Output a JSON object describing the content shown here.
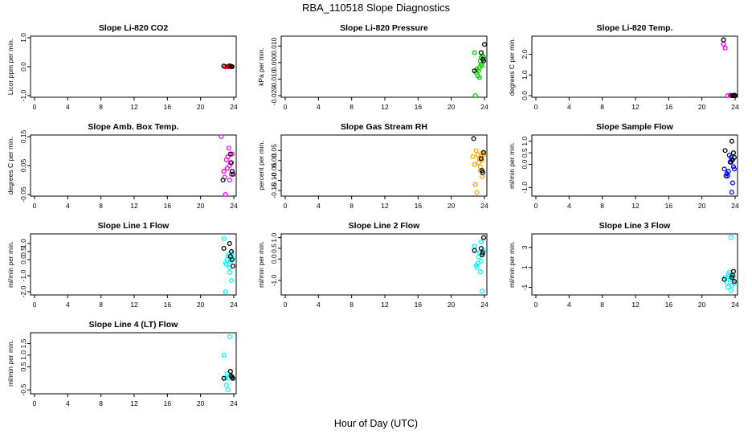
{
  "figure": {
    "title": "RBA_110518  Slope Diagnostics",
    "xlabel": "Hour of Day (UTC)",
    "black_color": "#000000"
  },
  "chart_data": [
    {
      "type": "scatter",
      "title": "Slope Li-820 CO2",
      "ylabel": "Licor ppm per min.",
      "xlim": [
        0,
        24
      ],
      "ylim": [
        -1.0,
        1.0
      ],
      "xticks": [
        "0",
        "4",
        "8",
        "12",
        "16",
        "20",
        "24"
      ],
      "yticks": [
        "-1.0",
        "0.0",
        "1.0"
      ],
      "color": "#ff0000",
      "series": [
        {
          "x": [
            22.8,
            23.0,
            23.2,
            23.3,
            23.4,
            23.5,
            23.6,
            23.7
          ],
          "y": [
            0.02,
            0.0,
            0.01,
            0.0,
            0.02,
            0.0,
            0.01,
            0.0
          ]
        },
        {
          "x": [
            22.8,
            23.5,
            23.7,
            23.8
          ],
          "y": [
            0.02,
            0.03,
            0.01,
            0.0
          ]
        }
      ]
    },
    {
      "type": "scatter",
      "title": "Slope Li-820 Pressure",
      "ylabel": "kPa per min.",
      "xlim": [
        0,
        24
      ],
      "ylim": [
        -0.02,
        0.015
      ],
      "xticks": [
        "0",
        "4",
        "8",
        "12",
        "16",
        "20",
        "24"
      ],
      "yticks": [
        "-0.020",
        "-0.010",
        "0.000",
        "0.010"
      ],
      "color": "#00cc00",
      "series": [
        {
          "x": [
            22.8,
            23.0,
            23.2,
            23.3,
            23.4,
            23.5,
            23.6,
            23.7,
            23.8,
            23.9,
            22.9,
            23.1,
            23.4,
            23.6,
            23.8
          ],
          "y": [
            0.006,
            -0.006,
            -0.008,
            -0.005,
            -0.003,
            0.001,
            0.003,
            -0.002,
            0.002,
            0.003,
            -0.02,
            -0.004,
            -0.009,
            -0.001,
            0.004
          ]
        },
        {
          "x": [
            22.8,
            23.6,
            23.8,
            23.9,
            24.0
          ],
          "y": [
            -0.005,
            0.006,
            0.002,
            0.001,
            0.011
          ]
        }
      ]
    },
    {
      "type": "scatter",
      "title": "Slope Li-820 Temp.",
      "ylabel": "degrees C per min.",
      "xlim": [
        0,
        24
      ],
      "ylim": [
        0.0,
        2.8
      ],
      "xticks": [
        "0",
        "4",
        "8",
        "12",
        "16",
        "20",
        "24"
      ],
      "yticks": [
        "0.0",
        "1.0",
        "2.0"
      ],
      "color": "#ff00ff",
      "series": [
        {
          "x": [
            22.6,
            22.8,
            23.1,
            23.4,
            23.7,
            23.9
          ],
          "y": [
            2.5,
            2.3,
            0.0,
            0.02,
            0.01,
            0.0
          ]
        },
        {
          "x": [
            22.6,
            23.6,
            23.8,
            23.9,
            24.0
          ],
          "y": [
            2.7,
            0.0,
            0.0,
            0.02,
            0.0
          ]
        }
      ]
    },
    {
      "type": "scatter",
      "title": "Slope Amb. Box Temp.",
      "ylabel": "degrees C per min.",
      "xlim": [
        0,
        24
      ],
      "ylim": [
        -0.05,
        0.15
      ],
      "xticks": [
        "0",
        "4",
        "8",
        "12",
        "16",
        "20",
        "24"
      ],
      "yticks": [
        "-0.05",
        "0.05",
        "0.15"
      ],
      "color": "#ff00ff",
      "series": [
        {
          "x": [
            22.5,
            22.8,
            23.1,
            23.3,
            23.5,
            23.7,
            23.0,
            23.4,
            23.6,
            23.2,
            23.8,
            23.5,
            22.9
          ],
          "y": [
            0.15,
            0.03,
            0.07,
            0.08,
            0.05,
            0.02,
            -0.05,
            0.11,
            0.06,
            0.04,
            0.09,
            0.0,
            0.01
          ]
        },
        {
          "x": [
            22.7,
            23.6,
            23.8,
            23.9,
            23.7
          ],
          "y": [
            0.0,
            0.09,
            0.03,
            0.02,
            0.06
          ]
        }
      ]
    },
    {
      "type": "scatter",
      "title": "Slope Gas Stream RH",
      "ylabel": "percent per min.",
      "xlim": [
        0,
        24
      ],
      "ylim": [
        -0.17,
        0.12
      ],
      "xticks": [
        "0",
        "4",
        "8",
        "12",
        "16",
        "20",
        "24"
      ],
      "yticks": [
        "-0.15",
        "-0.10",
        "-0.05",
        "0.00",
        "0.05"
      ],
      "color": "#ffa500",
      "series": [
        {
          "x": [
            22.6,
            22.8,
            23.0,
            23.2,
            23.3,
            23.4,
            23.5,
            23.6,
            23.7,
            23.8,
            23.9,
            22.9,
            23.1,
            23.5,
            23.7
          ],
          "y": [
            0.02,
            -0.02,
            0.05,
            0.03,
            -0.01,
            0.01,
            -0.03,
            0.02,
            -0.08,
            0.04,
            0.03,
            -0.12,
            -0.16,
            -0.05,
            0.0
          ]
        },
        {
          "x": [
            22.7,
            23.7,
            23.9,
            23.8,
            23.6
          ],
          "y": [
            0.11,
            -0.05,
            0.04,
            -0.06,
            0.01
          ]
        }
      ]
    },
    {
      "type": "scatter",
      "title": "Slope Sample Flow",
      "ylabel": "ml/min per min.",
      "xlim": [
        0,
        24
      ],
      "ylim": [
        -1.3,
        1.2
      ],
      "xticks": [
        "0",
        "4",
        "8",
        "12",
        "16",
        "20",
        "24"
      ],
      "yticks": [
        "-1.0",
        "0.0",
        "0.5",
        "1.0"
      ],
      "color": "#0000ff",
      "series": [
        {
          "x": [
            22.7,
            23.0,
            23.2,
            23.4,
            23.6,
            23.8,
            23.1,
            23.5,
            23.7,
            23.3,
            23.9,
            22.9,
            23.6
          ],
          "y": [
            -0.2,
            -0.4,
            -0.3,
            0.1,
            0.2,
            -0.1,
            -0.5,
            0.3,
            -0.8,
            0.4,
            -0.2,
            -0.5,
            -1.2
          ]
        },
        {
          "x": [
            22.8,
            23.6,
            23.8,
            23.9,
            23.7,
            23.5
          ],
          "y": [
            0.6,
            1.0,
            0.5,
            0.3,
            0.2,
            0.1
          ]
        }
      ]
    },
    {
      "type": "scatter",
      "title": "Slope Line 1 Flow",
      "ylabel": "ml/min per min.",
      "xlim": [
        0,
        24
      ],
      "ylim": [
        -2.1,
        1.5
      ],
      "xticks": [
        "0",
        "4",
        "8",
        "12",
        "16",
        "20",
        "24"
      ],
      "yticks": [
        "-2.0",
        "-1.0",
        "0.0",
        "0.5",
        "1.0"
      ],
      "color": "#00ffff",
      "series": [
        {
          "x": [
            22.8,
            23.0,
            23.2,
            23.4,
            23.6,
            23.8,
            23.1,
            23.5,
            23.7,
            23.3,
            23.9,
            23.0,
            23.6,
            23.5
          ],
          "y": [
            1.3,
            -0.2,
            0.0,
            0.3,
            -0.1,
            0.4,
            -0.3,
            -0.8,
            -1.3,
            0.2,
            0.1,
            -2.0,
            0.0,
            -0.5
          ]
        },
        {
          "x": [
            22.8,
            23.5,
            23.7,
            23.8,
            23.9,
            23.6
          ],
          "y": [
            0.7,
            1.0,
            0.5,
            0.0,
            -0.4,
            0.2
          ]
        }
      ]
    },
    {
      "type": "scatter",
      "title": "Slope Line 2 Flow",
      "ylabel": "ml/min per min.",
      "xlim": [
        0,
        24
      ],
      "ylim": [
        -1.6,
        1.1
      ],
      "xticks": [
        "0",
        "4",
        "8",
        "12",
        "16",
        "20",
        "24"
      ],
      "yticks": [
        "-1.0",
        "0.0",
        "0.5",
        "1.0"
      ],
      "color": "#00ffff",
      "series": [
        {
          "x": [
            22.8,
            23.0,
            23.2,
            23.4,
            23.6,
            23.8,
            23.1,
            23.5,
            23.7,
            23.3,
            23.9,
            23.6
          ],
          "y": [
            0.6,
            -0.3,
            -0.2,
            0.3,
            -0.1,
            0.2,
            -0.4,
            -0.6,
            -1.5,
            0.1,
            0.4,
            0.8
          ]
        },
        {
          "x": [
            22.8,
            23.6,
            23.8,
            23.9,
            23.7
          ],
          "y": [
            0.4,
            0.5,
            0.3,
            1.0,
            0.2
          ]
        }
      ]
    },
    {
      "type": "scatter",
      "title": "Slope Line 3 Flow",
      "ylabel": "ml/min per min.",
      "xlim": [
        0,
        24
      ],
      "ylim": [
        -1.6,
        4.2
      ],
      "xticks": [
        "0",
        "4",
        "8",
        "12",
        "16",
        "20",
        "24"
      ],
      "yticks": [
        "-1",
        "1",
        "3"
      ],
      "color": "#00ffff",
      "series": [
        {
          "x": [
            22.8,
            23.0,
            23.2,
            23.4,
            23.6,
            23.8,
            23.1,
            23.5,
            23.7,
            23.3,
            23.9,
            23.5
          ],
          "y": [
            0.0,
            -0.5,
            0.3,
            -0.2,
            -0.8,
            0.1,
            -1.0,
            -1.3,
            -0.3,
            0.5,
            -0.6,
            4.0
          ]
        },
        {
          "x": [
            22.7,
            23.6,
            23.8,
            23.9,
            23.7
          ],
          "y": [
            -0.2,
            0.0,
            0.6,
            -0.4,
            0.2
          ]
        }
      ]
    },
    {
      "type": "scatter",
      "title": "Slope Line 4 (LT) Flow",
      "ylabel": "ml/min per min.",
      "xlim": [
        0,
        24
      ],
      "ylim": [
        -0.6,
        1.9
      ],
      "xticks": [
        "0",
        "4",
        "8",
        "12",
        "16",
        "20",
        "24"
      ],
      "yticks": [
        "-0.5",
        "0.5",
        "1.0",
        "1.5"
      ],
      "color": "#00ffff",
      "series": [
        {
          "x": [
            22.8,
            23.0,
            23.2,
            23.4,
            23.6,
            23.8,
            23.1,
            23.5,
            23.3
          ],
          "y": [
            1.0,
            0.0,
            0.2,
            0.0,
            0.1,
            0.0,
            -0.3,
            1.8,
            -0.5
          ]
        },
        {
          "x": [
            22.8,
            23.6,
            23.8,
            23.9,
            23.7
          ],
          "y": [
            0.0,
            0.3,
            0.05,
            0.0,
            0.1
          ]
        }
      ]
    }
  ]
}
